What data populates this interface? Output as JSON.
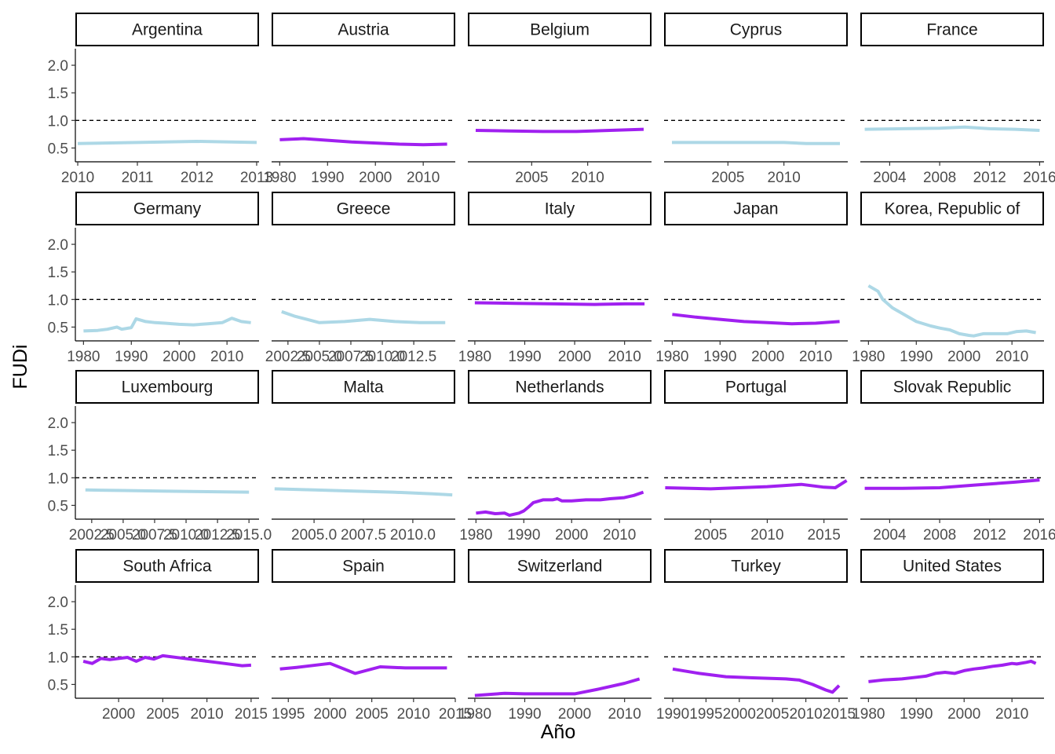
{
  "chart_data": {
    "type": "line",
    "facet": "small-multiples",
    "xlabel": "Año",
    "ylabel": "FUDi",
    "ylim": [
      0.25,
      2.3
    ],
    "yticks": [
      0.5,
      1.0,
      1.5,
      2.0
    ],
    "ytick_labels": [
      "0.5",
      "1.0",
      "1.5",
      "2.0"
    ],
    "reference_line": 1.0,
    "grid": false,
    "colors": {
      "lightblue": "#add8e6",
      "purple": "#a020f0",
      "strip_border": "#000000",
      "reference": "#000000"
    },
    "panels": [
      {
        "country": "Argentina",
        "color": "lightblue",
        "xlim": [
          2009.96,
          2013.04
        ],
        "xticks": [
          2010,
          2011,
          2012,
          2013
        ],
        "xtick_labels": [
          "2010",
          "2011",
          "2012",
          "2013"
        ],
        "x": [
          2010,
          2011,
          2012,
          2013
        ],
        "y": [
          0.58,
          0.6,
          0.62,
          0.6
        ]
      },
      {
        "country": "Austria",
        "color": "purple",
        "xlim": [
          1978.3,
          2016.7
        ],
        "xticks": [
          1980,
          1990,
          2000,
          2010
        ],
        "xtick_labels": [
          "1980",
          "1990",
          "2000",
          "2010"
        ],
        "x": [
          1980,
          1985,
          1990,
          1995,
          2000,
          2005,
          2010,
          2015
        ],
        "y": [
          0.65,
          0.67,
          0.64,
          0.61,
          0.59,
          0.57,
          0.56,
          0.57
        ]
      },
      {
        "country": "Belgium",
        "color": "purple",
        "xlim": [
          1999.3,
          2015.7
        ],
        "xticks": [
          2005,
          2010
        ],
        "xtick_labels": [
          "2005",
          "2010"
        ],
        "x": [
          2000,
          2003,
          2006,
          2009,
          2012,
          2015
        ],
        "y": [
          0.82,
          0.81,
          0.8,
          0.8,
          0.82,
          0.84
        ]
      },
      {
        "country": "Cyprus",
        "color": "lightblue",
        "xlim": [
          1999.3,
          2015.7
        ],
        "xticks": [
          2005,
          2010
        ],
        "xtick_labels": [
          "2005",
          "2010"
        ],
        "x": [
          2000,
          2005,
          2010,
          2012,
          2015
        ],
        "y": [
          0.6,
          0.6,
          0.6,
          0.58,
          0.58
        ]
      },
      {
        "country": "France",
        "color": "lightblue",
        "xlim": [
          2001.65,
          2016.35
        ],
        "xticks": [
          2004,
          2008,
          2012,
          2016
        ],
        "xtick_labels": [
          "2004",
          "2008",
          "2012",
          "2016"
        ],
        "x": [
          2002,
          2005,
          2008,
          2010,
          2012,
          2014,
          2016
        ],
        "y": [
          0.84,
          0.85,
          0.86,
          0.88,
          0.85,
          0.84,
          0.82
        ]
      },
      {
        "country": "Germany",
        "color": "lightblue",
        "xlim": [
          1978.3,
          2016.7
        ],
        "xticks": [
          1980,
          1990,
          2000,
          2010
        ],
        "xtick_labels": [
          "1980",
          "1990",
          "2000",
          "2010"
        ],
        "x": [
          1980,
          1983,
          1985,
          1987,
          1988,
          1990,
          1991,
          1993,
          1995,
          1997,
          2000,
          2003,
          2006,
          2009,
          2011,
          2013,
          2015
        ],
        "y": [
          0.43,
          0.44,
          0.46,
          0.5,
          0.46,
          0.49,
          0.65,
          0.6,
          0.58,
          0.57,
          0.55,
          0.54,
          0.56,
          0.58,
          0.66,
          0.6,
          0.58
        ]
      },
      {
        "country": "Greece",
        "color": "lightblue",
        "xlim": [
          2001.2,
          2015.8
        ],
        "xticks": [
          2002.5,
          2005,
          2007.5,
          2010,
          2012.5
        ],
        "xtick_labels": [
          "2002.5",
          "2005.0",
          "2007.5",
          "2010.0",
          "2012.5"
        ],
        "x": [
          2002,
          2003,
          2004,
          2005,
          2007,
          2009,
          2011,
          2013,
          2015
        ],
        "y": [
          0.78,
          0.7,
          0.64,
          0.58,
          0.6,
          0.64,
          0.6,
          0.58,
          0.58
        ]
      },
      {
        "country": "Italy",
        "color": "purple",
        "xlim": [
          1978.6,
          2015.4
        ],
        "xticks": [
          1980,
          1990,
          2000,
          2010
        ],
        "xtick_labels": [
          "1980",
          "1990",
          "2000",
          "2010"
        ],
        "x": [
          1980,
          1988,
          1996,
          2004,
          2010,
          2014
        ],
        "y": [
          0.94,
          0.93,
          0.92,
          0.91,
          0.92,
          0.92
        ]
      },
      {
        "country": "Japan",
        "color": "purple",
        "xlim": [
          1978.3,
          2016.7
        ],
        "xticks": [
          1980,
          1990,
          2000,
          2010
        ],
        "xtick_labels": [
          "1980",
          "1990",
          "2000",
          "2010"
        ],
        "x": [
          1980,
          1985,
          1990,
          1995,
          2000,
          2005,
          2010,
          2015
        ],
        "y": [
          0.73,
          0.68,
          0.64,
          0.6,
          0.58,
          0.56,
          0.57,
          0.6
        ]
      },
      {
        "country": "Korea, Republic of",
        "color": "lightblue",
        "xlim": [
          1978.3,
          2016.7
        ],
        "xticks": [
          1980,
          1990,
          2000,
          2010
        ],
        "xtick_labels": [
          "1980",
          "1990",
          "2000",
          "2010"
        ],
        "x": [
          1980,
          1982,
          1983,
          1985,
          1988,
          1990,
          1993,
          1995,
          1997,
          1999,
          2001,
          2002,
          2004,
          2007,
          2009,
          2011,
          2013,
          2015
        ],
        "y": [
          1.25,
          1.15,
          1.0,
          0.85,
          0.7,
          0.6,
          0.52,
          0.48,
          0.45,
          0.38,
          0.35,
          0.34,
          0.38,
          0.38,
          0.38,
          0.42,
          0.43,
          0.4
        ]
      },
      {
        "country": "Luxembourg",
        "color": "lightblue",
        "xlim": [
          2001.2,
          2015.8
        ],
        "xticks": [
          2002.5,
          2005,
          2007.5,
          2010,
          2012.5,
          2015
        ],
        "xtick_labels": [
          "2002.5",
          "2005.0",
          "2007.5",
          "2010.0",
          "2012.5",
          "2015.0"
        ],
        "x": [
          2002,
          2005,
          2008,
          2011,
          2015
        ],
        "y": [
          0.78,
          0.77,
          0.76,
          0.75,
          0.74
        ]
      },
      {
        "country": "Malta",
        "color": "lightblue",
        "xlim": [
          2002.85,
          2012.15
        ],
        "xticks": [
          2005,
          2007.5,
          2010
        ],
        "xtick_labels": [
          "2005.0",
          "2007.5",
          "2010.0"
        ],
        "x": [
          2003,
          2005,
          2007,
          2009,
          2011,
          2012
        ],
        "y": [
          0.8,
          0.78,
          0.76,
          0.74,
          0.71,
          0.69
        ]
      },
      {
        "country": "Netherlands",
        "color": "purple",
        "xlim": [
          1978.3,
          2016.7
        ],
        "xticks": [
          1980,
          1990,
          2000,
          2010
        ],
        "xtick_labels": [
          "1980",
          "1990",
          "2000",
          "2010"
        ],
        "x": [
          1980,
          1982,
          1984,
          1986,
          1987,
          1989,
          1990,
          1991,
          1992,
          1994,
          1996,
          1997,
          1998,
          2000,
          2003,
          2006,
          2008,
          2011,
          2013,
          2015
        ],
        "y": [
          0.36,
          0.38,
          0.35,
          0.36,
          0.32,
          0.36,
          0.4,
          0.47,
          0.55,
          0.6,
          0.6,
          0.62,
          0.58,
          0.58,
          0.6,
          0.6,
          0.62,
          0.64,
          0.68,
          0.74
        ]
      },
      {
        "country": "Portugal",
        "color": "purple",
        "xlim": [
          2000.9,
          2017.1
        ],
        "xticks": [
          2005,
          2010,
          2015
        ],
        "xtick_labels": [
          "2005",
          "2010",
          "2015"
        ],
        "x": [
          2001,
          2005,
          2010,
          2013,
          2015,
          2016,
          2017
        ],
        "y": [
          0.82,
          0.8,
          0.84,
          0.88,
          0.83,
          0.82,
          0.95
        ]
      },
      {
        "country": "Slovak Republic",
        "color": "purple",
        "xlim": [
          2001.65,
          2016.35
        ],
        "xticks": [
          2004,
          2008,
          2012,
          2016
        ],
        "xtick_labels": [
          "2004",
          "2008",
          "2012",
          "2016"
        ],
        "x": [
          2002,
          2005,
          2008,
          2011,
          2014,
          2016
        ],
        "y": [
          0.81,
          0.81,
          0.82,
          0.87,
          0.92,
          0.96
        ]
      },
      {
        "country": "South Africa",
        "color": "purple",
        "xlim": [
          1995.1,
          2015.9
        ],
        "xticks": [
          2000,
          2005,
          2010,
          2015
        ],
        "xtick_labels": [
          "2000",
          "2005",
          "2010",
          "2015"
        ],
        "x": [
          1996,
          1997,
          1998,
          1999,
          2001,
          2002,
          2003,
          2004,
          2005,
          2007,
          2009,
          2011,
          2013,
          2014,
          2015
        ],
        "y": [
          0.92,
          0.88,
          0.97,
          0.95,
          0.99,
          0.92,
          0.99,
          0.96,
          1.02,
          0.98,
          0.94,
          0.9,
          0.86,
          0.84,
          0.85
        ]
      },
      {
        "country": "Spain",
        "color": "purple",
        "xlim": [
          1993.0,
          2015.0
        ],
        "xticks": [
          1995,
          2000,
          2005,
          2010,
          2015
        ],
        "xtick_labels": [
          "1995",
          "2000",
          "2005",
          "2010",
          "2015"
        ],
        "x": [
          1994,
          1996,
          2000,
          2003,
          2006,
          2009,
          2014
        ],
        "y": [
          0.78,
          0.81,
          0.88,
          0.7,
          0.82,
          0.8,
          0.8
        ]
      },
      {
        "country": "Switzerland",
        "color": "purple",
        "xlim": [
          1978.6,
          2015.4
        ],
        "xticks": [
          1980,
          1990,
          2000,
          2010
        ],
        "xtick_labels": [
          "1980",
          "1990",
          "2000",
          "2010"
        ],
        "x": [
          1980,
          1983,
          1986,
          1990,
          1995,
          2000,
          2005,
          2010,
          2013
        ],
        "y": [
          0.3,
          0.32,
          0.34,
          0.33,
          0.33,
          0.33,
          0.42,
          0.52,
          0.6
        ]
      },
      {
        "country": "Turkey",
        "color": "purple",
        "xlim": [
          1988.7,
          2016.3
        ],
        "xticks": [
          1990,
          1995,
          2000,
          2005,
          2010,
          2015
        ],
        "xtick_labels": [
          "1990",
          "1995",
          "2000",
          "2005",
          "2010",
          "2015"
        ],
        "x": [
          1990,
          1994,
          1998,
          2002,
          2007,
          2009,
          2011,
          2013,
          2014,
          2015
        ],
        "y": [
          0.78,
          0.7,
          0.64,
          0.62,
          0.6,
          0.58,
          0.5,
          0.4,
          0.36,
          0.48
        ]
      },
      {
        "country": "United States",
        "color": "purple",
        "xlim": [
          1978.3,
          2016.7
        ],
        "xticks": [
          1980,
          1990,
          2000,
          2010
        ],
        "xtick_labels": [
          "1980",
          "1990",
          "2000",
          "2010"
        ],
        "x": [
          1980,
          1983,
          1987,
          1990,
          1992,
          1994,
          1996,
          1998,
          2000,
          2002,
          2004,
          2006,
          2008,
          2010,
          2011,
          2013,
          2014,
          2015
        ],
        "y": [
          0.55,
          0.58,
          0.6,
          0.63,
          0.65,
          0.7,
          0.72,
          0.7,
          0.75,
          0.78,
          0.8,
          0.83,
          0.85,
          0.88,
          0.87,
          0.9,
          0.92,
          0.88
        ]
      }
    ]
  }
}
